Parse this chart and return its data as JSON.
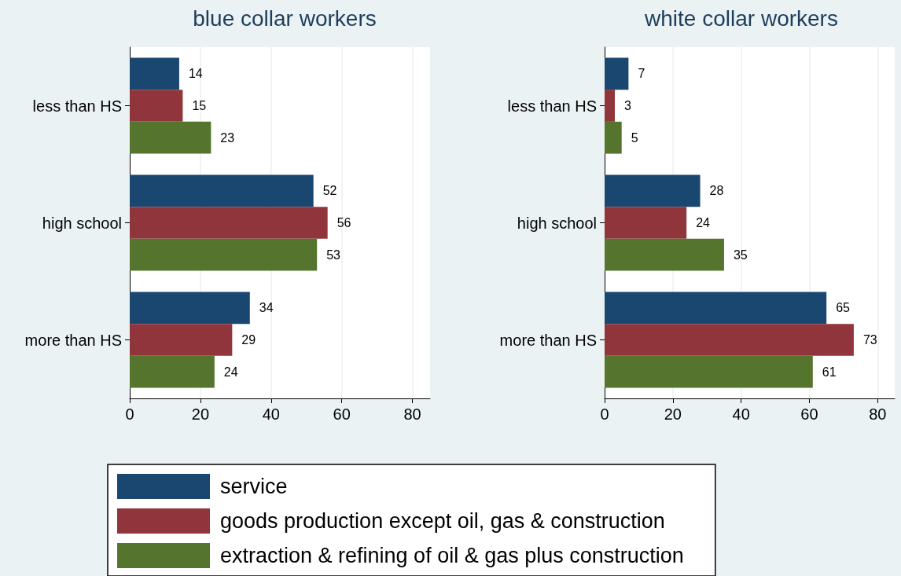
{
  "chart_data": [
    {
      "type": "bar",
      "orientation": "horizontal",
      "title": "blue collar workers",
      "categories": [
        "less than HS",
        "high school",
        "more than HS"
      ],
      "series": [
        {
          "name": "service",
          "color": "#1a476f",
          "values": [
            14,
            52,
            34
          ]
        },
        {
          "name": "goods production except oil, gas & construction",
          "color": "#90353b",
          "values": [
            15,
            56,
            29
          ]
        },
        {
          "name": "extraction & refining of oil & gas plus construction",
          "color": "#55752f",
          "values": [
            23,
            53,
            24
          ]
        }
      ],
      "xlim": [
        0,
        85
      ],
      "xticks": [
        0,
        20,
        40,
        60,
        80
      ],
      "grid": "x",
      "data_labels": true,
      "legend": "bottom"
    },
    {
      "type": "bar",
      "orientation": "horizontal",
      "title": "white collar workers",
      "categories": [
        "less than HS",
        "high school",
        "more than HS"
      ],
      "series": [
        {
          "color": "#1a476f",
          "values": [
            7,
            28,
            65
          ]
        },
        {
          "color": "#90353b",
          "values": [
            3,
            24,
            73
          ]
        },
        {
          "color": "#55752f",
          "values": [
            5,
            35,
            61
          ]
        }
      ],
      "xlim": [
        0,
        85
      ],
      "xticks": [
        0,
        20,
        40,
        60,
        80
      ],
      "grid": "x",
      "data_labels": true,
      "legend": false
    }
  ]
}
